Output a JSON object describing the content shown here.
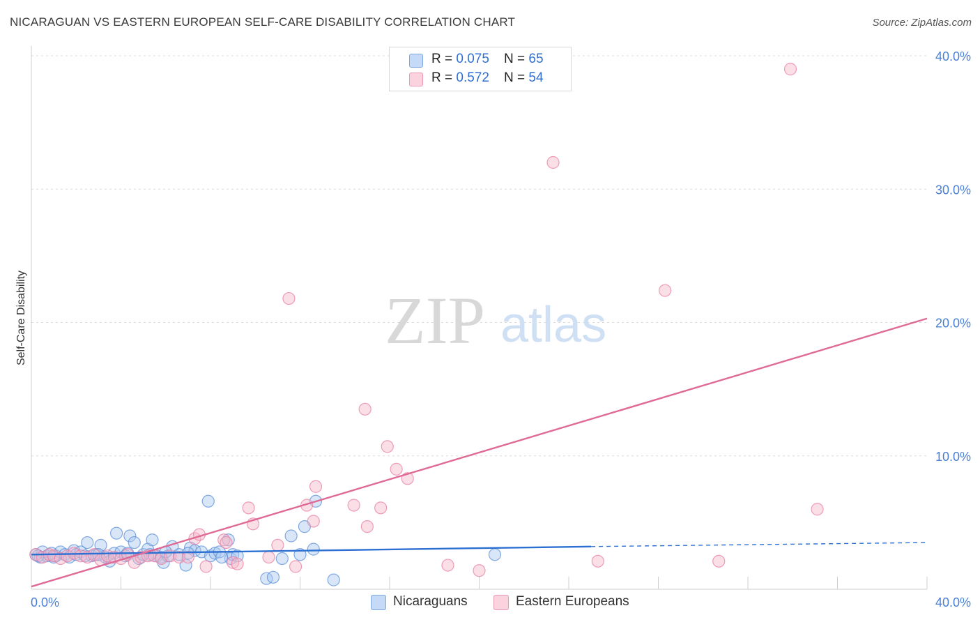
{
  "title": "NICARAGUAN VS EASTERN EUROPEAN SELF-CARE DISABILITY CORRELATION CHART",
  "source": "Source: ZipAtlas.com",
  "watermark": {
    "zip": "ZIP",
    "atlas": "atlas"
  },
  "legend_top": [
    {
      "r_label": "R = ",
      "r_value": "0.075",
      "n_label": "N = ",
      "n_value": "65",
      "color": "#a9c8f0"
    },
    {
      "r_label": "R = ",
      "r_value": "0.572",
      "n_label": "N = ",
      "n_value": "54",
      "color": "#f5b8ca"
    }
  ],
  "legend_bottom": [
    {
      "label": "Nicaraguans",
      "color": "#a9c8f0"
    },
    {
      "label": "Eastern Europeans",
      "color": "#f5b8ca"
    }
  ],
  "chart_data": {
    "type": "scatter",
    "title": "NICARAGUAN VS EASTERN EUROPEAN SELF-CARE DISABILITY CORRELATION CHART",
    "xlabel": "",
    "ylabel": "Self-Care Disability",
    "xlim": [
      0,
      40
    ],
    "ylim": [
      0,
      41
    ],
    "x_tick_labels": [
      "0.0%",
      "40.0%"
    ],
    "y_tick_labels": [
      "10.0%",
      "20.0%",
      "30.0%",
      "40.0%"
    ],
    "y_ticks": [
      10,
      20,
      30,
      40
    ],
    "grid": true,
    "legend_placement": "top-center",
    "series": [
      {
        "name": "Nicaraguans",
        "color": "#5b8fd8",
        "fill": "#a9c8f0",
        "trend": {
          "x": [
            0,
            25
          ],
          "y": [
            2.6,
            3.2
          ],
          "dashed_to": [
            40,
            3.5
          ]
        },
        "points": [
          [
            0.2,
            2.6
          ],
          [
            0.4,
            2.4
          ],
          [
            0.5,
            2.8
          ],
          [
            0.7,
            2.5
          ],
          [
            0.9,
            2.7
          ],
          [
            1.1,
            2.5
          ],
          [
            1.3,
            2.8
          ],
          [
            1.5,
            2.6
          ],
          [
            1.7,
            2.4
          ],
          [
            1.9,
            2.9
          ],
          [
            2.0,
            2.6
          ],
          [
            2.2,
            2.8
          ],
          [
            2.5,
            3.5
          ],
          [
            2.7,
            2.5
          ],
          [
            2.9,
            2.6
          ],
          [
            3.1,
            3.3
          ],
          [
            3.3,
            2.4
          ],
          [
            3.5,
            2.1
          ],
          [
            3.7,
            2.7
          ],
          [
            3.8,
            4.2
          ],
          [
            4.0,
            2.8
          ],
          [
            4.2,
            2.5
          ],
          [
            4.4,
            4.0
          ],
          [
            4.6,
            3.5
          ],
          [
            4.8,
            2.3
          ],
          [
            5.0,
            2.6
          ],
          [
            5.2,
            3.0
          ],
          [
            5.4,
            3.7
          ],
          [
            5.6,
            2.5
          ],
          [
            5.8,
            2.4
          ],
          [
            5.9,
            2.0
          ],
          [
            6.1,
            2.5
          ],
          [
            6.3,
            3.2
          ],
          [
            6.6,
            2.6
          ],
          [
            6.9,
            1.8
          ],
          [
            7.1,
            3.1
          ],
          [
            7.3,
            2.9
          ],
          [
            7.6,
            2.8
          ],
          [
            8.0,
            2.5
          ],
          [
            8.2,
            2.7
          ],
          [
            7.9,
            6.6
          ],
          [
            8.4,
            2.8
          ],
          [
            8.8,
            3.7
          ],
          [
            8.9,
            2.3
          ],
          [
            9.0,
            2.6
          ],
          [
            10.5,
            0.8
          ],
          [
            10.8,
            0.9
          ],
          [
            11.2,
            2.3
          ],
          [
            11.6,
            4.0
          ],
          [
            12.0,
            2.6
          ],
          [
            12.2,
            4.7
          ],
          [
            12.6,
            3.0
          ],
          [
            12.7,
            6.6
          ],
          [
            13.5,
            0.7
          ],
          [
            20.7,
            2.6
          ],
          [
            0.3,
            2.5
          ],
          [
            1.0,
            2.4
          ],
          [
            2.4,
            2.5
          ],
          [
            3.0,
            2.6
          ],
          [
            4.3,
            2.7
          ],
          [
            5.3,
            2.6
          ],
          [
            6.0,
            2.8
          ],
          [
            7.0,
            2.7
          ],
          [
            8.5,
            2.4
          ],
          [
            9.2,
            2.5
          ]
        ]
      },
      {
        "name": "Eastern Europeans",
        "color": "#e87fa4",
        "fill": "#f5b8ca",
        "trend": {
          "x": [
            0,
            40
          ],
          "y": [
            0.2,
            20.3
          ]
        },
        "points": [
          [
            0.2,
            2.6
          ],
          [
            0.5,
            2.4
          ],
          [
            0.8,
            2.6
          ],
          [
            1.0,
            2.5
          ],
          [
            1.3,
            2.3
          ],
          [
            1.6,
            2.5
          ],
          [
            1.9,
            2.7
          ],
          [
            2.2,
            2.5
          ],
          [
            2.5,
            2.4
          ],
          [
            2.8,
            2.6
          ],
          [
            3.1,
            2.2
          ],
          [
            3.4,
            2.5
          ],
          [
            3.7,
            2.4
          ],
          [
            4.0,
            2.3
          ],
          [
            4.3,
            2.6
          ],
          [
            4.6,
            2.0
          ],
          [
            4.9,
            2.4
          ],
          [
            5.2,
            2.5
          ],
          [
            5.5,
            2.5
          ],
          [
            5.8,
            2.3
          ],
          [
            6.2,
            2.5
          ],
          [
            6.6,
            2.4
          ],
          [
            7.0,
            2.4
          ],
          [
            7.3,
            3.8
          ],
          [
            7.5,
            4.1
          ],
          [
            7.8,
            1.7
          ],
          [
            8.6,
            3.7
          ],
          [
            8.7,
            3.5
          ],
          [
            9.0,
            2.0
          ],
          [
            9.2,
            1.9
          ],
          [
            9.7,
            6.1
          ],
          [
            9.9,
            4.9
          ],
          [
            10.6,
            2.4
          ],
          [
            11.0,
            3.3
          ],
          [
            11.5,
            21.8
          ],
          [
            11.8,
            1.7
          ],
          [
            12.3,
            6.3
          ],
          [
            12.6,
            5.1
          ],
          [
            12.7,
            7.7
          ],
          [
            14.4,
            6.3
          ],
          [
            14.9,
            13.5
          ],
          [
            15.0,
            4.7
          ],
          [
            15.6,
            6.1
          ],
          [
            15.9,
            10.7
          ],
          [
            16.3,
            9.0
          ],
          [
            16.8,
            8.3
          ],
          [
            18.6,
            1.8
          ],
          [
            20.0,
            1.4
          ],
          [
            23.3,
            32.0
          ],
          [
            25.3,
            2.1
          ],
          [
            28.3,
            22.4
          ],
          [
            30.7,
            2.1
          ],
          [
            33.9,
            39.0
          ],
          [
            35.1,
            6.0
          ]
        ]
      }
    ]
  }
}
